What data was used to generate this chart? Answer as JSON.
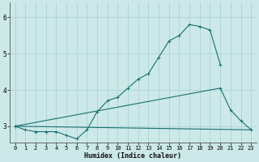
{
  "xlabel": "Humidex (Indice chaleur)",
  "xlim": [
    -0.5,
    23.5
  ],
  "ylim": [
    2.55,
    6.4
  ],
  "yticks": [
    3,
    4,
    5,
    6
  ],
  "xticks": [
    0,
    1,
    2,
    3,
    4,
    5,
    6,
    7,
    8,
    9,
    10,
    11,
    12,
    13,
    14,
    15,
    16,
    17,
    18,
    19,
    20,
    21,
    22,
    23
  ],
  "bg_color": "#cce8e8",
  "grid_color": "#aad4d4",
  "line_color": "#1a7070",
  "curve1_x": [
    0,
    1,
    2,
    3,
    4,
    5,
    6,
    7,
    8,
    9,
    10,
    11,
    12,
    13,
    14,
    15,
    16,
    17,
    18,
    19,
    20
  ],
  "curve1_y": [
    3.0,
    2.9,
    2.85,
    2.85,
    2.85,
    2.75,
    2.65,
    2.9,
    3.4,
    3.7,
    3.8,
    4.05,
    4.3,
    4.45,
    4.9,
    5.35,
    5.5,
    5.8,
    5.75,
    5.65,
    4.7
  ],
  "line2_x": [
    0,
    20,
    21,
    22,
    23
  ],
  "line2_y": [
    3.0,
    4.05,
    3.45,
    3.15,
    2.9
  ],
  "line3_x": [
    0,
    23
  ],
  "line3_y": [
    3.0,
    2.9
  ],
  "xlabel_fontsize": 6.0,
  "tick_fontsize": 5.0
}
